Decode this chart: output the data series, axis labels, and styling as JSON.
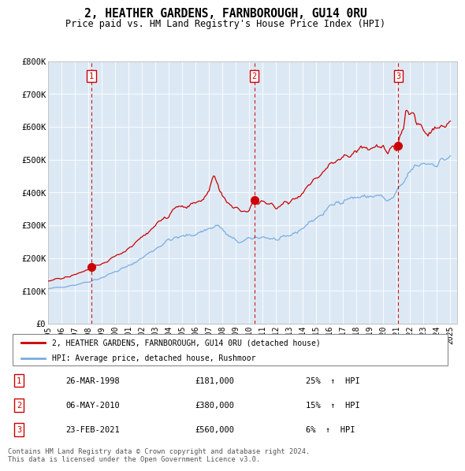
{
  "title": "2, HEATHER GARDENS, FARNBOROUGH, GU14 0RU",
  "subtitle": "Price paid vs. HM Land Registry's House Price Index (HPI)",
  "ylim": [
    0,
    800000
  ],
  "yticks": [
    0,
    100000,
    200000,
    300000,
    400000,
    500000,
    600000,
    700000,
    800000
  ],
  "ytick_labels": [
    "£0",
    "£100K",
    "£200K",
    "£300K",
    "£400K",
    "£500K",
    "£600K",
    "£700K",
    "£800K"
  ],
  "red_color": "#cc0000",
  "blue_color": "#7aade0",
  "chart_bg": "#dce9f5",
  "legend_label_red": "2, HEATHER GARDENS, FARNBOROUGH, GU14 0RU (detached house)",
  "legend_label_blue": "HPI: Average price, detached house, Rushmoor",
  "transactions": [
    {
      "num": 1,
      "date": "26-MAR-1998",
      "price": 181000,
      "pct": "25%",
      "year": 1998.23
    },
    {
      "num": 2,
      "date": "06-MAY-2010",
      "price": 380000,
      "pct": "15%",
      "year": 2010.38
    },
    {
      "num": 3,
      "date": "23-FEB-2021",
      "price": 560000,
      "pct": "6%",
      "year": 2021.12
    }
  ],
  "footer_line1": "Contains HM Land Registry data © Crown copyright and database right 2024.",
  "footer_line2": "This data is licensed under the Open Government Licence v3.0.",
  "xlim": [
    1995,
    2025.5
  ],
  "xticks": [
    1995,
    1996,
    1997,
    1998,
    1999,
    2000,
    2001,
    2002,
    2003,
    2004,
    2005,
    2006,
    2007,
    2008,
    2009,
    2010,
    2011,
    2012,
    2013,
    2014,
    2015,
    2016,
    2017,
    2018,
    2019,
    2020,
    2021,
    2022,
    2023,
    2024,
    2025
  ]
}
